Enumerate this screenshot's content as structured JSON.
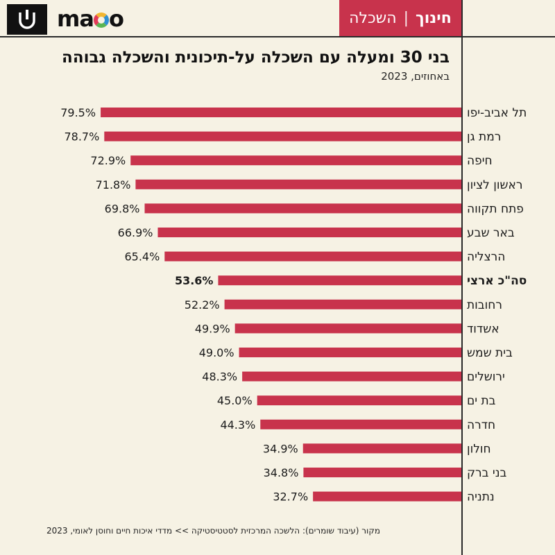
{
  "header": {
    "section_main": "חינוך",
    "section_separator": "|",
    "section_sub": "השכלה",
    "brand": "mako"
  },
  "colors": {
    "bar": "#c8334c",
    "background": "#f6f2e4",
    "text": "#1b1b1b"
  },
  "icons": {
    "channel_logo": "channel-logo-icon",
    "brand_logo": "mako-logo-icon"
  },
  "chart_data": {
    "type": "bar",
    "orientation": "horizontal",
    "title": "בני 30 ומעלה עם השכלה על-תיכונית והשכלה גבוהה",
    "subtitle": "באחוזים, 2023",
    "categories": [
      "תל אביב-יפו",
      "רמת גן",
      "חיפה",
      "ראשון לציון",
      "פתח תקווה",
      "באר שבע",
      "הרצליה",
      "סה\"כ ארצי",
      "רחובות",
      "אשדוד",
      "בית שמש",
      "ירושלים",
      "בת ים",
      "חדרה",
      "חולון",
      "בני ברק",
      "נתניה"
    ],
    "values": [
      79.5,
      78.7,
      72.9,
      71.8,
      69.8,
      66.9,
      65.4,
      53.6,
      52.2,
      49.9,
      49.0,
      48.3,
      45.0,
      44.3,
      34.9,
      34.8,
      32.7
    ],
    "value_labels": [
      "79.5%",
      "78.7%",
      "72.9%",
      "71.8%",
      "69.8%",
      "66.9%",
      "65.4%",
      "53.6%",
      "52.2%",
      "49.9%",
      "49.0%",
      "48.3%",
      "45.0%",
      "44.3%",
      "34.9%",
      "34.8%",
      "32.7%"
    ],
    "highlight_category": "סה\"כ ארצי",
    "xlim": [
      0,
      100
    ],
    "grid": false,
    "legend": "none"
  },
  "footer": {
    "source": "מקור (עיבוד שומרים): הלשכה המרכזית לסטטיסטיקה >> מדדי איכות חיים וחוסן לאומי, 2023"
  }
}
